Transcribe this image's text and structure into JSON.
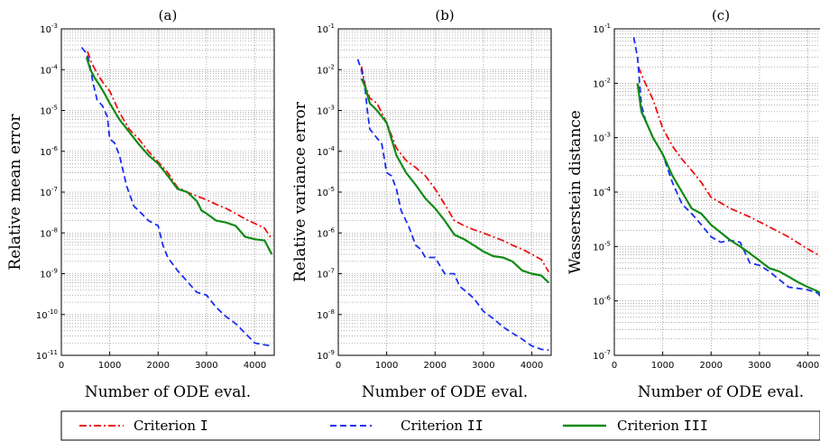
{
  "chart_data": [
    {
      "type": "line",
      "title": "(a)",
      "xlabel": "Number of ODE eval.",
      "ylabel": "Relative mean error",
      "xlim": [
        0,
        4400
      ],
      "ylim": [
        1e-11,
        0.001
      ],
      "yscale": "log",
      "xticks": [
        0,
        1000,
        2000,
        3000,
        4000
      ],
      "yticks": [
        1e-11,
        1e-10,
        1e-09,
        1e-08,
        1e-07,
        1e-06,
        1e-05,
        0.0001,
        0.001
      ],
      "ytick_labels": [
        {
          "base": "10",
          "exp": "-11"
        },
        {
          "base": "10",
          "exp": "-10"
        },
        {
          "base": "10",
          "exp": "-9"
        },
        {
          "base": "10",
          "exp": "-8"
        },
        {
          "base": "10",
          "exp": "-7"
        },
        {
          "base": "10",
          "exp": "-6"
        },
        {
          "base": "10",
          "exp": "-5"
        },
        {
          "base": "10",
          "exp": "-4"
        },
        {
          "base": "10",
          "exp": "-3"
        }
      ],
      "grid": true,
      "series": [
        {
          "name": "Criterion I",
          "x": [
            540,
            620,
            720,
            850,
            1000,
            1200,
            1400,
            1600,
            1800,
            2000,
            2200,
            2400,
            2600,
            2800,
            3000,
            3200,
            3400,
            3600,
            3800,
            4000,
            4200,
            4350
          ],
          "y": [
            0.00028,
            0.00015,
            9e-05,
            5e-05,
            3e-05,
            9e-06,
            3.5e-06,
            2e-06,
            1e-06,
            5.5e-07,
            3e-07,
            1.3e-07,
            1e-07,
            8e-08,
            6.5e-08,
            5e-08,
            4e-08,
            3e-08,
            2.2e-08,
            1.7e-08,
            1.3e-08,
            7e-09
          ]
        },
        {
          "name": "Criterion II",
          "x": [
            420,
            520,
            580,
            650,
            740,
            850,
            950,
            1000,
            1100,
            1200,
            1350,
            1500,
            1600,
            1800,
            2000,
            2100,
            2200,
            2400,
            2600,
            2800,
            3000,
            3200,
            3400,
            3600,
            3800,
            4000,
            4200,
            4350
          ],
          "y": [
            0.00035,
            0.00025,
            0.00015,
            5e-05,
            1.8e-05,
            1.3e-05,
            7e-06,
            2e-06,
            1.6e-06,
            8e-07,
            1.4e-07,
            4.5e-08,
            3.5e-08,
            2e-08,
            1.5e-08,
            5e-09,
            2.5e-09,
            1.2e-09,
            6.5e-10,
            3.5e-10,
            3e-10,
            1.5e-10,
            9e-11,
            6e-11,
            3.5e-11,
            2e-11,
            1.8e-11,
            1.7e-11
          ]
        },
        {
          "name": "Criterion III",
          "x": [
            520,
            600,
            700,
            800,
            900,
            1000,
            1200,
            1400,
            1600,
            1800,
            2000,
            2200,
            2400,
            2600,
            2800,
            2900,
            3000,
            3200,
            3400,
            3600,
            3800,
            4000,
            4200,
            4350
          ],
          "y": [
            0.0002,
            0.0001,
            6e-05,
            4e-05,
            2.5e-05,
            1.5e-05,
            6e-06,
            3e-06,
            1.5e-06,
            8e-07,
            5e-07,
            2.5e-07,
            1.2e-07,
            1e-07,
            6e-08,
            3.5e-08,
            3e-08,
            2e-08,
            1.8e-08,
            1.5e-08,
            8e-09,
            7e-09,
            6.5e-09,
            3e-09
          ]
        }
      ]
    },
    {
      "type": "line",
      "title": "(b)",
      "xlabel": "Number of ODE eval.",
      "ylabel": "Relative variance error",
      "xlim": [
        0,
        4400
      ],
      "ylim": [
        1e-09,
        0.1
      ],
      "yscale": "log",
      "xticks": [
        0,
        1000,
        2000,
        3000,
        4000
      ],
      "yticks": [
        1e-09,
        1e-08,
        1e-07,
        1e-06,
        1e-05,
        0.0001,
        0.001,
        0.01,
        0.1
      ],
      "ytick_labels": [
        {
          "base": "10",
          "exp": "-9"
        },
        {
          "base": "10",
          "exp": "-8"
        },
        {
          "base": "10",
          "exp": "-7"
        },
        {
          "base": "10",
          "exp": "-6"
        },
        {
          "base": "10",
          "exp": "-5"
        },
        {
          "base": "10",
          "exp": "-4"
        },
        {
          "base": "10",
          "exp": "-3"
        },
        {
          "base": "10",
          "exp": "-2"
        },
        {
          "base": "10",
          "exp": "-1"
        }
      ],
      "grid": true,
      "series": [
        {
          "name": "Criterion I",
          "x": [
            480,
            560,
            650,
            800,
            1000,
            1200,
            1400,
            1600,
            1800,
            2000,
            2200,
            2400,
            2600,
            2800,
            3000,
            3200,
            3400,
            3600,
            3800,
            4000,
            4200,
            4350
          ],
          "y": [
            0.012,
            0.004,
            0.002,
            0.0015,
            0.0005,
            0.00012,
            6e-05,
            4e-05,
            2.5e-05,
            1.2e-05,
            5e-06,
            2e-06,
            1.5e-06,
            1.2e-06,
            1e-06,
            8e-07,
            6.5e-07,
            5e-07,
            4e-07,
            3e-07,
            2.2e-07,
            1.1e-07
          ]
        },
        {
          "name": "Criterion II",
          "x": [
            400,
            480,
            560,
            600,
            650,
            750,
            900,
            1000,
            1100,
            1200,
            1300,
            1450,
            1600,
            1700,
            1800,
            2000,
            2200,
            2400,
            2500,
            2600,
            2800,
            3000,
            3200,
            3400,
            3600,
            3800,
            4000,
            4200,
            4350
          ],
          "y": [
            0.018,
            0.01,
            0.003,
            0.001,
            0.00035,
            0.00025,
            0.00015,
            3e-05,
            2.5e-05,
            1.2e-05,
            3.5e-06,
            1.5e-06,
            5e-07,
            4e-07,
            2.5e-07,
            2.5e-07,
            1e-07,
            1e-07,
            5e-08,
            4e-08,
            2.5e-08,
            1.2e-08,
            8e-09,
            5e-09,
            3.5e-09,
            2.5e-09,
            1.7e-09,
            1.4e-09,
            1.35e-09
          ]
        },
        {
          "name": "Criterion III",
          "x": [
            480,
            550,
            650,
            800,
            1000,
            1200,
            1400,
            1600,
            1800,
            2000,
            2200,
            2400,
            2600,
            2800,
            3000,
            3200,
            3400,
            3600,
            3800,
            4000,
            4200,
            4350
          ],
          "y": [
            0.006,
            0.004,
            0.0015,
            0.001,
            0.0005,
            8e-05,
            3e-05,
            1.5e-05,
            7e-06,
            4e-06,
            2e-06,
            9e-07,
            7e-07,
            5e-07,
            3.5e-07,
            2.7e-07,
            2.5e-07,
            2e-07,
            1.2e-07,
            1e-07,
            9e-08,
            6e-08
          ]
        }
      ]
    },
    {
      "type": "line",
      "title": "(c)",
      "xlabel": "Number of ODE eval.",
      "ylabel": "Wasserstein distance",
      "xlim": [
        0,
        4400
      ],
      "ylim": [
        1e-07,
        0.1
      ],
      "yscale": "log",
      "xticks": [
        0,
        1000,
        2000,
        3000,
        4000
      ],
      "yticks": [
        1e-07,
        1e-06,
        1e-05,
        0.0001,
        0.001,
        0.01,
        0.1
      ],
      "ytick_labels": [
        {
          "base": "10",
          "exp": "-7"
        },
        {
          "base": "10",
          "exp": "-6"
        },
        {
          "base": "10",
          "exp": "-5"
        },
        {
          "base": "10",
          "exp": "-4"
        },
        {
          "base": "10",
          "exp": "-3"
        },
        {
          "base": "10",
          "exp": "-2"
        },
        {
          "base": "10",
          "exp": "-1"
        }
      ],
      "grid": true,
      "series": [
        {
          "name": "Criterion I",
          "x": [
            500,
            600,
            800,
            1000,
            1200,
            1400,
            1600,
            1800,
            2000,
            2400,
            2800,
            3200,
            3600,
            4000,
            4350
          ],
          "y": [
            0.02,
            0.012,
            0.005,
            0.0015,
            0.0007,
            0.0004,
            0.00025,
            0.00015,
            8e-05,
            5e-05,
            3.5e-05,
            2.3e-05,
            1.5e-05,
            9e-06,
            6e-06
          ]
        },
        {
          "name": "Criterion II",
          "x": [
            400,
            480,
            560,
            650,
            800,
            1000,
            1200,
            1400,
            1600,
            1800,
            2000,
            2200,
            2400,
            2600,
            2800,
            3000,
            3200,
            3400,
            3600,
            3800,
            4000,
            4200,
            4350
          ],
          "y": [
            0.07,
            0.03,
            0.004,
            0.002,
            0.001,
            0.0005,
            0.00015,
            6e-05,
            4e-05,
            2.5e-05,
            1.5e-05,
            1.2e-05,
            1.3e-05,
            1.2e-05,
            5e-06,
            4.5e-06,
            3.5e-06,
            2.5e-06,
            1.8e-06,
            1.7e-06,
            1.6e-06,
            1.4e-06,
            1e-06
          ]
        },
        {
          "name": "Criterion III",
          "x": [
            480,
            560,
            650,
            800,
            1000,
            1200,
            1400,
            1600,
            1800,
            2000,
            2200,
            2400,
            2600,
            2800,
            3000,
            3200,
            3400,
            3600,
            3800,
            4000,
            4200,
            4350
          ],
          "y": [
            0.01,
            0.003,
            0.002,
            0.001,
            0.0005,
            0.0002,
            0.0001,
            5e-05,
            4e-05,
            2.5e-05,
            1.8e-05,
            1.3e-05,
            1e-05,
            7.5e-06,
            5.5e-06,
            4e-06,
            3.5e-06,
            2.8e-06,
            2.2e-06,
            1.8e-06,
            1.5e-06,
            1.2e-06
          ]
        }
      ]
    }
  ],
  "legend": {
    "placement": "bottom",
    "items": [
      {
        "label": "Criterion ",
        "numeral": "I",
        "color": "#ee1111",
        "style": "dash-dot"
      },
      {
        "label": "Criterion ",
        "numeral": "II",
        "color": "#1a2ef2",
        "style": "dashed"
      },
      {
        "label": "Criterion ",
        "numeral": "III",
        "color": "#0e8a14",
        "style": "solid"
      }
    ]
  },
  "styles": {
    "Criterion I": {
      "color": "#ee1111",
      "dash": "8,3,2,3"
    },
    "Criterion II": {
      "color": "#1a2ef2",
      "dash": "7,4"
    },
    "Criterion III": {
      "color": "#0e8a14",
      "dash": ""
    }
  }
}
